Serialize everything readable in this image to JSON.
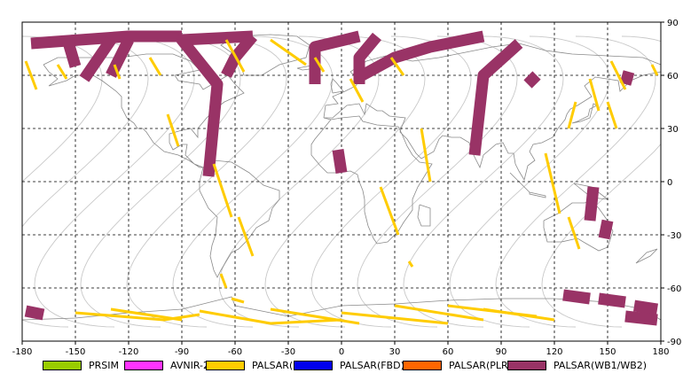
{
  "map": {
    "x_axis": {
      "ticks": [
        -180,
        -150,
        -120,
        -90,
        -60,
        -30,
        0,
        30,
        60,
        90,
        120,
        150,
        180
      ]
    },
    "y_axis": {
      "ticks": [
        90,
        60,
        30,
        0,
        -30,
        -60,
        -90
      ]
    },
    "grid": true
  },
  "legend": {
    "items": [
      {
        "label": "PRSIM",
        "color": "#99cc00"
      },
      {
        "label": "AVNIR-2",
        "color": "#ff33ff"
      },
      {
        "label": "PALSAR(FBS)",
        "color": "#ffcc00"
      },
      {
        "label": "PALSAR(FBD)",
        "color": "#0000ee"
      },
      {
        "label": "PALSAR(PLR)",
        "color": "#ff6600"
      },
      {
        "label": "PALSAR(WB1/WB2)",
        "color": "#993366"
      }
    ]
  },
  "chart_data": {
    "type": "map",
    "xlim": [
      -180,
      180
    ],
    "ylim": [
      -90,
      90
    ],
    "x_ticks": [
      -180,
      -150,
      -120,
      -90,
      -60,
      -30,
      0,
      30,
      60,
      90,
      120,
      150,
      180
    ],
    "y_ticks": [
      90,
      60,
      30,
      0,
      -30,
      -60,
      -90
    ],
    "grid": true,
    "legend_position": "bottom",
    "series": [
      {
        "name": "PALSAR(WB1/WB2)",
        "color": "#993366",
        "segments": [
          [
            [
              -175,
              78
            ],
            [
              -120,
              82
            ],
            [
              -90,
              82
            ]
          ],
          [
            [
              -155,
              82
            ],
            [
              -150,
              65
            ]
          ],
          [
            [
              -130,
              80
            ],
            [
              -145,
              58
            ]
          ],
          [
            [
              -120,
              80
            ],
            [
              -130,
              60
            ]
          ],
          [
            [
              -50,
              82
            ],
            [
              -90,
              80
            ],
            [
              -70,
              55
            ],
            [
              -75,
              3
            ]
          ],
          [
            [
              -50,
              82
            ],
            [
              -60,
              70
            ],
            [
              -65,
              60
            ]
          ],
          [
            [
              10,
              82
            ],
            [
              -15,
              76
            ],
            [
              -15,
              55
            ]
          ],
          [
            [
              20,
              82
            ],
            [
              10,
              70
            ],
            [
              10,
              55
            ]
          ],
          [
            [
              80,
              82
            ],
            [
              50,
              76
            ],
            [
              30,
              70
            ],
            [
              8,
              58
            ]
          ],
          [
            [
              100,
              78
            ],
            [
              80,
              60
            ],
            [
              75,
              15
            ]
          ],
          [
            [
              110,
              60
            ],
            [
              105,
              55
            ]
          ],
          [
            [
              -2,
              18
            ],
            [
              0,
              5
            ]
          ],
          [
            [
              142,
              -3
            ],
            [
              140,
              -22
            ]
          ],
          [
            [
              150,
              -22
            ],
            [
              148,
              -32
            ]
          ],
          [
            [
              162,
              62
            ],
            [
              160,
              55
            ]
          ],
          [
            [
              -178,
              -73
            ],
            [
              -168,
              -75
            ]
          ],
          [
            [
              125,
              -64
            ],
            [
              140,
              -66
            ]
          ],
          [
            [
              145,
              -66
            ],
            [
              160,
              -68
            ]
          ],
          [
            [
              165,
              -70
            ],
            [
              178,
              -72
            ]
          ],
          [
            [
              160,
              -76
            ],
            [
              178,
              -78
            ]
          ]
        ]
      },
      {
        "name": "PALSAR(FBS)",
        "color": "#ffcc00",
        "segments": [
          [
            [
              -178,
              68
            ],
            [
              -172,
              52
            ]
          ],
          [
            [
              -160,
              66
            ],
            [
              -155,
              58
            ]
          ],
          [
            [
              -128,
              66
            ],
            [
              -125,
              58
            ]
          ],
          [
            [
              -108,
              70
            ],
            [
              -102,
              60
            ]
          ],
          [
            [
              -98,
              38
            ],
            [
              -92,
              20
            ]
          ],
          [
            [
              -65,
              80
            ],
            [
              -55,
              62
            ]
          ],
          [
            [
              -40,
              80
            ],
            [
              -20,
              66
            ]
          ],
          [
            [
              -72,
              10
            ],
            [
              -62,
              -20
            ]
          ],
          [
            [
              -58,
              -20
            ],
            [
              -50,
              -42
            ]
          ],
          [
            [
              -68,
              -52
            ],
            [
              -65,
              -60
            ]
          ],
          [
            [
              -15,
              70
            ],
            [
              -10,
              62
            ]
          ],
          [
            [
              28,
              70
            ],
            [
              35,
              60
            ]
          ],
          [
            [
              5,
              58
            ],
            [
              12,
              45
            ]
          ],
          [
            [
              45,
              30
            ],
            [
              50,
              0
            ]
          ],
          [
            [
              22,
              -3
            ],
            [
              32,
              -30
            ]
          ],
          [
            [
              38,
              -45
            ],
            [
              40,
              -48
            ]
          ],
          [
            [
              115,
              16
            ],
            [
              123,
              -18
            ]
          ],
          [
            [
              132,
              45
            ],
            [
              128,
              30
            ]
          ],
          [
            [
              128,
              -20
            ],
            [
              134,
              -38
            ]
          ],
          [
            [
              140,
              58
            ],
            [
              145,
              40
            ]
          ],
          [
            [
              150,
              45
            ],
            [
              155,
              30
            ]
          ],
          [
            [
              152,
              68
            ],
            [
              160,
              52
            ]
          ],
          [
            [
              175,
              66
            ],
            [
              178,
              60
            ]
          ],
          [
            [
              -150,
              -74
            ],
            [
              -100,
              -78
            ],
            [
              -80,
              -75
            ]
          ],
          [
            [
              -130,
              -72
            ],
            [
              -90,
              -78
            ]
          ],
          [
            [
              -80,
              -73
            ],
            [
              -40,
              -80
            ],
            [
              0,
              -78
            ]
          ],
          [
            [
              -40,
              -72
            ],
            [
              10,
              -80
            ]
          ],
          [
            [
              0,
              -74
            ],
            [
              60,
              -80
            ]
          ],
          [
            [
              30,
              -70
            ],
            [
              80,
              -78
            ]
          ],
          [
            [
              60,
              -70
            ],
            [
              110,
              -76
            ]
          ],
          [
            [
              80,
              -72
            ],
            [
              120,
              -78
            ]
          ],
          [
            [
              -62,
              -66
            ],
            [
              -55,
              -68
            ]
          ]
        ]
      }
    ]
  }
}
